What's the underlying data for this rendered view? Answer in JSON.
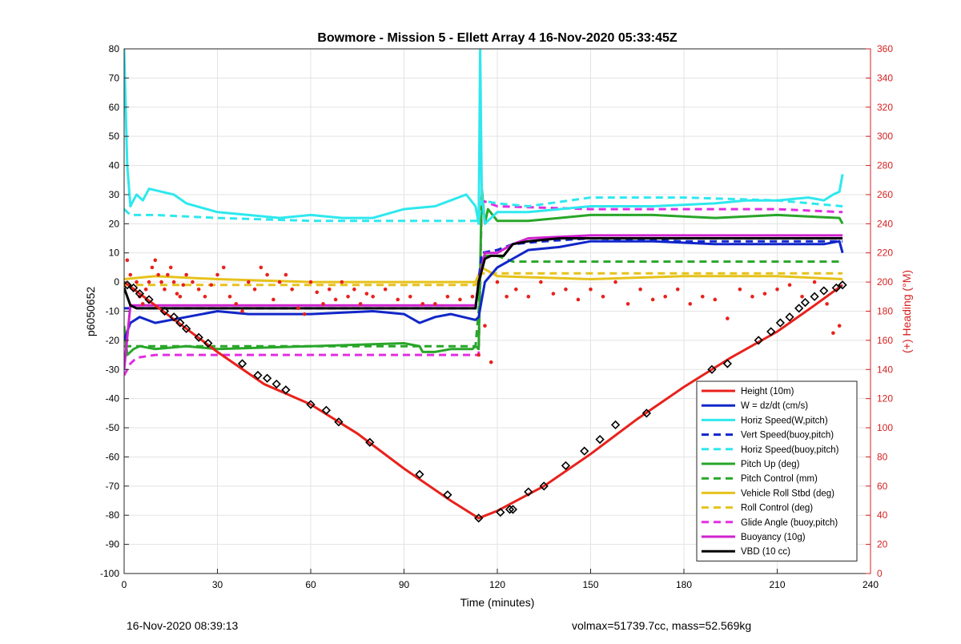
{
  "chart_data": {
    "type": "line",
    "title": "Bowmore - Mission 5 - Ellett Array 4 16-Nov-2020 05:33:45Z",
    "xlabel": "Time (minutes)",
    "ylabel": "p6050652",
    "ylabel_right": "(+) Heading (°M)",
    "xlim": [
      0,
      240
    ],
    "ylim": [
      -100,
      80
    ],
    "ylim_right": [
      0,
      360
    ],
    "xticks": [
      0,
      30,
      60,
      90,
      120,
      150,
      180,
      210,
      240
    ],
    "yticks": [
      -100,
      -90,
      -80,
      -70,
      -60,
      -50,
      -40,
      -30,
      -20,
      -10,
      0,
      10,
      20,
      30,
      40,
      50,
      60,
      70,
      80
    ],
    "yticks_right": [
      0,
      20,
      40,
      60,
      80,
      100,
      120,
      140,
      160,
      180,
      200,
      220,
      240,
      260,
      280,
      300,
      320,
      340,
      360
    ],
    "grid": true,
    "legend_position": "bottom-right",
    "series": [
      {
        "name": "Height (10m)",
        "color": "#e8211b",
        "style": "solid",
        "x": [
          0,
          15,
          30,
          45,
          60,
          75,
          90,
          105,
          114,
          120,
          135,
          150,
          165,
          180,
          195,
          210,
          222,
          231
        ],
        "y": [
          0,
          -12,
          -24,
          -35,
          -42,
          -52,
          -64,
          -75,
          -81,
          -78.5,
          -70,
          -59,
          -47,
          -36,
          -26,
          -17,
          -8,
          -1
        ]
      },
      {
        "name": "W = dz/dt (cm/s)",
        "color": "#1026c8",
        "style": "solid",
        "x": [
          0,
          2,
          5,
          10,
          20,
          30,
          40,
          60,
          80,
          90,
          95,
          100,
          105,
          113,
          114,
          116,
          120,
          125,
          130,
          140,
          150,
          170,
          190,
          210,
          225,
          230,
          231
        ],
        "y": [
          -20,
          -14,
          -12,
          -14,
          -12,
          -10,
          -11,
          -11,
          -10,
          -11,
          -14,
          -12,
          -11,
          -13,
          -12,
          0,
          5,
          8,
          11,
          12,
          14,
          14,
          13,
          13,
          13,
          14,
          10
        ]
      },
      {
        "name": "Horiz Speed(W,pitch)",
        "color": "#2ee8ee",
        "style": "solid",
        "x": [
          0,
          1,
          2,
          4,
          6,
          8,
          12,
          16,
          20,
          30,
          40,
          50,
          60,
          70,
          80,
          90,
          100,
          105,
          110,
          113,
          114,
          114.5,
          115,
          116,
          120,
          130,
          140,
          150,
          170,
          190,
          200,
          210,
          220,
          225,
          228,
          230,
          231
        ],
        "y": [
          80,
          40,
          26,
          30,
          28,
          32,
          31,
          30,
          27,
          24,
          23,
          22,
          23,
          22,
          22,
          25,
          26,
          28,
          30,
          26,
          20,
          80,
          30,
          20,
          24,
          24,
          25,
          26,
          26,
          27,
          28,
          28,
          29,
          28,
          30,
          31,
          37
        ]
      },
      {
        "name": "Vert Speed(buoy,pitch)",
        "color": "#1026c8",
        "style": "dashed",
        "x": [
          0,
          3,
          30,
          60,
          90,
          113,
          115,
          120,
          125,
          135,
          150,
          180,
          210,
          231
        ],
        "y": [
          -9,
          -9,
          -9,
          -9,
          -9,
          -9,
          10,
          11,
          13,
          14,
          15,
          14,
          14,
          14
        ]
      },
      {
        "name": "Horiz Speed(buoy,pitch)",
        "color": "#2ee8ee",
        "style": "dashed",
        "x": [
          0,
          2,
          10,
          30,
          60,
          90,
          113,
          114,
          115,
          120,
          130,
          150,
          180,
          210,
          231
        ],
        "y": [
          25,
          23,
          23,
          22,
          21,
          21,
          21,
          21,
          28,
          27,
          26,
          29,
          29,
          28,
          26
        ]
      },
      {
        "name": "Pitch Up (deg)",
        "color": "#29a629",
        "style": "solid",
        "x": [
          0,
          1,
          3,
          5,
          10,
          20,
          30,
          60,
          90,
          95,
          96,
          100,
          105,
          112,
          113,
          114,
          115,
          116,
          117,
          120,
          130,
          140,
          150,
          170,
          190,
          210,
          230,
          231
        ],
        "y": [
          -15,
          -25,
          -23,
          -22,
          -23,
          -22,
          -23,
          -22,
          -21,
          -22,
          -24,
          -24,
          -23,
          -23,
          -22,
          -23,
          32,
          20,
          25,
          21,
          21,
          22,
          23,
          23,
          22,
          23,
          22,
          20
        ]
      },
      {
        "name": "Pitch Control (mm)",
        "color": "#29a629",
        "style": "dashed",
        "x": [
          0,
          30,
          60,
          90,
          113,
          114,
          115,
          120,
          125,
          150,
          180,
          210,
          231
        ],
        "y": [
          -22,
          -22,
          -22,
          -22,
          -22,
          -10,
          9,
          9,
          7,
          7,
          7,
          7,
          7
        ]
      },
      {
        "name": "Vehicle Roll Stbd (deg)",
        "color": "#e6c21c",
        "style": "solid",
        "x": [
          0,
          10,
          30,
          60,
          90,
          113,
          115,
          120,
          150,
          180,
          210,
          231
        ],
        "y": [
          1,
          2,
          1,
          0,
          0,
          0,
          5,
          2,
          1,
          2,
          2,
          1
        ]
      },
      {
        "name": "Roll Control (deg)",
        "color": "#e6c21c",
        "style": "dashed",
        "x": [
          0,
          30,
          60,
          90,
          113,
          115,
          150,
          180,
          210,
          231
        ],
        "y": [
          -1,
          -1,
          -1,
          -1,
          -1,
          3,
          3,
          3,
          3,
          3
        ]
      },
      {
        "name": "Glide Angle (buoy,pitch)",
        "color": "#e22ee2",
        "style": "dashed",
        "x": [
          0,
          2,
          4,
          10,
          30,
          60,
          90,
          113,
          114,
          115,
          120,
          150,
          180,
          210,
          231
        ],
        "y": [
          -32,
          -28,
          -26,
          -25,
          -25,
          -25,
          -25,
          -25,
          -25,
          28,
          26,
          25,
          25,
          25,
          24
        ]
      },
      {
        "name": "Buoyancy (10g)",
        "color": "#cf22cf",
        "style": "solid",
        "x": [
          0,
          2,
          4,
          10,
          30,
          60,
          90,
          113,
          114,
          116,
          120,
          125,
          130,
          150,
          180,
          231
        ],
        "y": [
          -30,
          -8,
          -8,
          -8,
          -8,
          -8,
          -8,
          -8,
          0,
          10,
          10,
          13,
          15,
          16,
          16,
          16
        ]
      },
      {
        "name": "VBD (10 cc)",
        "color": "#000000",
        "style": "solid",
        "x": [
          0,
          1,
          2,
          4,
          10,
          30,
          60,
          90,
          113,
          114,
          116,
          118,
          120,
          122,
          125,
          130,
          140,
          150,
          180,
          231
        ],
        "y": [
          -2,
          -5,
          -8,
          -9,
          -9,
          -9,
          -9,
          -9,
          -9,
          0,
          8,
          9,
          9,
          9,
          13,
          14,
          15,
          15,
          15,
          15
        ]
      }
    ],
    "heading_points": {
      "name": "(+) Heading (°M)",
      "axis": "right",
      "color": "#e8211b",
      "x": [
        1,
        2,
        3,
        4,
        5,
        6,
        7,
        8,
        9,
        10,
        11,
        12,
        13,
        14,
        15,
        16,
        17,
        18,
        19,
        20,
        22,
        24,
        26,
        28,
        30,
        32,
        34,
        36,
        38,
        40,
        42,
        44,
        46,
        48,
        50,
        52,
        54,
        56,
        58,
        60,
        62,
        64,
        66,
        68,
        70,
        72,
        74,
        76,
        78,
        80,
        84,
        88,
        92,
        96,
        100,
        104,
        108,
        112,
        114,
        116,
        118,
        120,
        123,
        126,
        130,
        134,
        138,
        142,
        146,
        150,
        154,
        158,
        162,
        166,
        170,
        174,
        178,
        182,
        186,
        190,
        194,
        198,
        202,
        206,
        210,
        214,
        218,
        222,
        226,
        228,
        230
      ],
      "y": [
        215,
        205,
        195,
        200,
        190,
        185,
        195,
        200,
        210,
        215,
        205,
        200,
        195,
        205,
        210,
        200,
        192,
        190,
        198,
        205,
        200,
        195,
        190,
        198,
        205,
        210,
        190,
        185,
        180,
        200,
        195,
        210,
        205,
        188,
        200,
        205,
        195,
        182,
        178,
        200,
        193,
        185,
        195,
        188,
        200,
        190,
        195,
        185,
        192,
        190,
        195,
        188,
        190,
        185,
        185,
        190,
        188,
        190,
        150,
        170,
        145,
        200,
        190,
        195,
        190,
        200,
        192,
        195,
        188,
        195,
        190,
        200,
        185,
        195,
        188,
        190,
        195,
        185,
        190,
        188,
        175,
        195,
        190,
        192,
        195,
        198,
        190,
        200,
        185,
        165,
        170
      ]
    },
    "height_markers": {
      "x": [
        1,
        3,
        5,
        8,
        13,
        16,
        18,
        20,
        24,
        27,
        38,
        43,
        46,
        49,
        52,
        60,
        65,
        69,
        79,
        95,
        104,
        114,
        121,
        124,
        125,
        130,
        135,
        142,
        148,
        153,
        158,
        168,
        189,
        194,
        204,
        208,
        211,
        214,
        217,
        219,
        222,
        225,
        229,
        231
      ],
      "y": [
        -1,
        -2,
        -4,
        -6,
        -10,
        -12,
        -14,
        -16,
        -19,
        -21,
        -28,
        -32,
        -33,
        -35,
        -37,
        -42,
        -44,
        -48,
        -55,
        -66,
        -73,
        -81,
        -79,
        -78,
        -78,
        -72,
        -70,
        -63,
        -58,
        -54,
        -49,
        -45,
        -30,
        -28,
        -20,
        -17,
        -14,
        -12,
        -9,
        -7,
        -5,
        -3,
        -2,
        -1
      ]
    }
  },
  "footer": {
    "left": "16-Nov-2020 08:39:13",
    "right": "volmax=51739.7cc, mass=52.569kg"
  }
}
